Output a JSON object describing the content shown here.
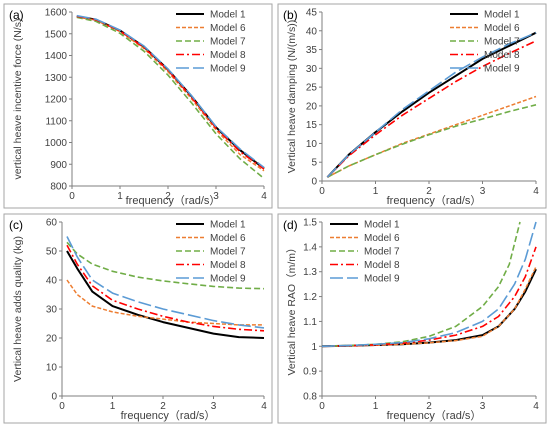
{
  "colors": {
    "Model 1": "#000000",
    "Model 6": "#ED7D31",
    "Model 7": "#70AD47",
    "Model 8": "#FF0000",
    "Model 9": "#5B9BD5",
    "axis": "#7f7f7f",
    "text": "#404040",
    "border": "#a6a6a6"
  },
  "chart_data": [
    {
      "type": "line",
      "panel_label": "(a)",
      "xlabel": "frequency（rad/s）",
      "ylabel": "vertical heave incentive force (N/s)",
      "xlim": [
        0,
        4
      ],
      "ylim": [
        800,
        1600
      ],
      "xticks": [
        0,
        1,
        2,
        3,
        4
      ],
      "yticks": [
        800,
        900,
        1000,
        1100,
        1200,
        1300,
        1400,
        1500,
        1600
      ],
      "grid": false,
      "legend": "top-right",
      "series": [
        {
          "name": "Model 1",
          "x": [
            0.1,
            0.5,
            1,
            1.5,
            2,
            2.5,
            3,
            3.5,
            4
          ],
          "y": [
            1580,
            1565,
            1515,
            1440,
            1335,
            1210,
            1070,
            965,
            880
          ]
        },
        {
          "name": "Model 6",
          "x": [
            0.1,
            0.5,
            1,
            1.5,
            2,
            2.5,
            3,
            3.5,
            4
          ],
          "y": [
            1578,
            1562,
            1510,
            1432,
            1325,
            1198,
            1058,
            945,
            870
          ]
        },
        {
          "name": "Model 7",
          "x": [
            0.1,
            0.5,
            1,
            1.5,
            2,
            2.5,
            3,
            3.5,
            4
          ],
          "y": [
            1575,
            1557,
            1502,
            1420,
            1310,
            1180,
            1040,
            925,
            835
          ]
        },
        {
          "name": "Model 8",
          "x": [
            0.1,
            0.5,
            1,
            1.5,
            2,
            2.5,
            3,
            3.5,
            4
          ],
          "y": [
            1580,
            1564,
            1513,
            1437,
            1332,
            1206,
            1066,
            958,
            878
          ]
        },
        {
          "name": "Model 9",
          "x": [
            0.1,
            0.5,
            1,
            1.5,
            2,
            2.5,
            3,
            3.5,
            4
          ],
          "y": [
            1583,
            1567,
            1517,
            1443,
            1338,
            1213,
            1073,
            970,
            885
          ]
        }
      ]
    },
    {
      "type": "line",
      "panel_label": "(b)",
      "xlabel": "frequency（rad/s）",
      "ylabel": "Vertical heave damping (N/(m/s))",
      "xlim": [
        0,
        4
      ],
      "ylim": [
        0,
        45
      ],
      "xticks": [
        0,
        1,
        2,
        3,
        4
      ],
      "yticks": [
        0,
        5,
        10,
        15,
        20,
        25,
        30,
        35,
        40,
        45
      ],
      "grid": false,
      "legend": "top-right",
      "series": [
        {
          "name": "Model 1",
          "x": [
            0.1,
            0.5,
            1,
            1.5,
            2,
            2.5,
            3,
            3.5,
            4
          ],
          "y": [
            1,
            7,
            13,
            18.5,
            23.5,
            28,
            32.5,
            36,
            39.5
          ]
        },
        {
          "name": "Model 6",
          "x": [
            0.1,
            0.5,
            1,
            1.5,
            2,
            2.5,
            3,
            3.5,
            4
          ],
          "y": [
            1,
            4,
            7,
            10,
            12.5,
            15,
            17.5,
            20,
            22.5
          ]
        },
        {
          "name": "Model 7",
          "x": [
            0.1,
            0.5,
            1,
            1.5,
            2,
            2.5,
            3,
            3.5,
            4
          ],
          "y": [
            1,
            4,
            7,
            9.8,
            12.3,
            14.6,
            16.5,
            18.5,
            20.3
          ]
        },
        {
          "name": "Model 8",
          "x": [
            0.1,
            0.5,
            1,
            1.5,
            2,
            2.5,
            3,
            3.5,
            4
          ],
          "y": [
            1,
            6.7,
            12.3,
            17.5,
            22,
            26.5,
            30.5,
            34,
            37.3
          ]
        },
        {
          "name": "Model 9",
          "x": [
            0.1,
            0.5,
            1,
            1.5,
            2,
            2.5,
            3,
            3.5,
            4
          ],
          "y": [
            1,
            7,
            13,
            19,
            24,
            29,
            33,
            36.5,
            39.5
          ]
        }
      ]
    },
    {
      "type": "line",
      "panel_label": "(c)",
      "xlabel": "frequency（rad/s）",
      "ylabel": "Vertical heave adds quality (kg)",
      "xlim": [
        0,
        4
      ],
      "ylim": [
        0,
        60
      ],
      "xticks": [
        0,
        1,
        2,
        3,
        4
      ],
      "yticks": [
        0,
        10,
        20,
        30,
        40,
        50,
        60
      ],
      "grid": false,
      "legend": "top-right",
      "series": [
        {
          "name": "Model 1",
          "x": [
            0.1,
            0.3,
            0.6,
            1,
            1.5,
            2,
            2.5,
            3,
            3.5,
            4
          ],
          "y": [
            50,
            44,
            36,
            31,
            28,
            25.5,
            23.5,
            21.5,
            20.3,
            20
          ]
        },
        {
          "name": "Model 6",
          "x": [
            0.1,
            0.3,
            0.6,
            1,
            1.5,
            2,
            2.5,
            3,
            3.5,
            4
          ],
          "y": [
            40,
            35,
            31,
            29,
            27.5,
            26.5,
            25.5,
            25,
            24.5,
            24.5
          ]
        },
        {
          "name": "Model 7",
          "x": [
            0.1,
            0.3,
            0.6,
            1,
            1.5,
            2,
            2.5,
            3,
            3.5,
            4
          ],
          "y": [
            53,
            49,
            45.5,
            43,
            41,
            39.7,
            38.7,
            37.8,
            37.2,
            37
          ]
        },
        {
          "name": "Model 8",
          "x": [
            0.1,
            0.3,
            0.6,
            1,
            1.5,
            2,
            2.5,
            3,
            3.5,
            4
          ],
          "y": [
            52,
            45.5,
            38,
            33,
            30,
            27.5,
            25.5,
            24,
            23,
            22.5
          ]
        },
        {
          "name": "Model 9",
          "x": [
            0.1,
            0.3,
            0.6,
            1,
            1.5,
            2,
            2.5,
            3,
            3.5,
            4
          ],
          "y": [
            55,
            48,
            40,
            35.5,
            32.5,
            30,
            28,
            26,
            24.5,
            23.5
          ]
        }
      ]
    },
    {
      "type": "line",
      "panel_label": "(d)",
      "xlabel": "frequency（rad/s）",
      "ylabel": "Vertical heave RAO（m/m）",
      "xlim": [
        0,
        4
      ],
      "ylim": [
        0.8,
        1.5
      ],
      "xticks": [
        0,
        1,
        2,
        3,
        4
      ],
      "yticks": [
        0.8,
        0.9,
        1,
        1.1,
        1.2,
        1.3,
        1.4,
        1.5
      ],
      "ytick_labels": [
        "0.8",
        "0.9",
        "1",
        "1.1",
        "1.2",
        "1.3",
        "1.4",
        "1.5"
      ],
      "grid": false,
      "legend": "top-left",
      "series": [
        {
          "name": "Model 1",
          "x": [
            0,
            0.5,
            1,
            1.5,
            2,
            2.5,
            3,
            3.3,
            3.6,
            3.8,
            4
          ],
          "y": [
            1,
            1.002,
            1.005,
            1.008,
            1.015,
            1.025,
            1.045,
            1.08,
            1.15,
            1.22,
            1.31
          ]
        },
        {
          "name": "Model 6",
          "x": [
            0,
            0.5,
            1,
            1.5,
            2,
            2.5,
            3,
            3.3,
            3.6,
            3.8,
            4
          ],
          "y": [
            1,
            1.002,
            1.004,
            1.008,
            1.014,
            1.023,
            1.04,
            1.08,
            1.15,
            1.23,
            1.32
          ]
        },
        {
          "name": "Model 7",
          "x": [
            0,
            0.5,
            1,
            1.5,
            2,
            2.5,
            3,
            3.3,
            3.5,
            3.7
          ],
          "y": [
            1,
            1.003,
            1.008,
            1.018,
            1.04,
            1.08,
            1.16,
            1.24,
            1.33,
            1.5
          ]
        },
        {
          "name": "Model 8",
          "x": [
            0,
            0.5,
            1,
            1.5,
            2,
            2.5,
            3,
            3.3,
            3.6,
            3.8,
            4
          ],
          "y": [
            1,
            1.002,
            1.006,
            1.012,
            1.025,
            1.045,
            1.08,
            1.12,
            1.2,
            1.28,
            1.4
          ]
        },
        {
          "name": "Model 9",
          "x": [
            0,
            0.5,
            1,
            1.5,
            2,
            2.5,
            3,
            3.3,
            3.6,
            3.8,
            4
          ],
          "y": [
            1,
            1.003,
            1.008,
            1.015,
            1.03,
            1.055,
            1.1,
            1.15,
            1.25,
            1.35,
            1.5
          ]
        }
      ]
    }
  ]
}
